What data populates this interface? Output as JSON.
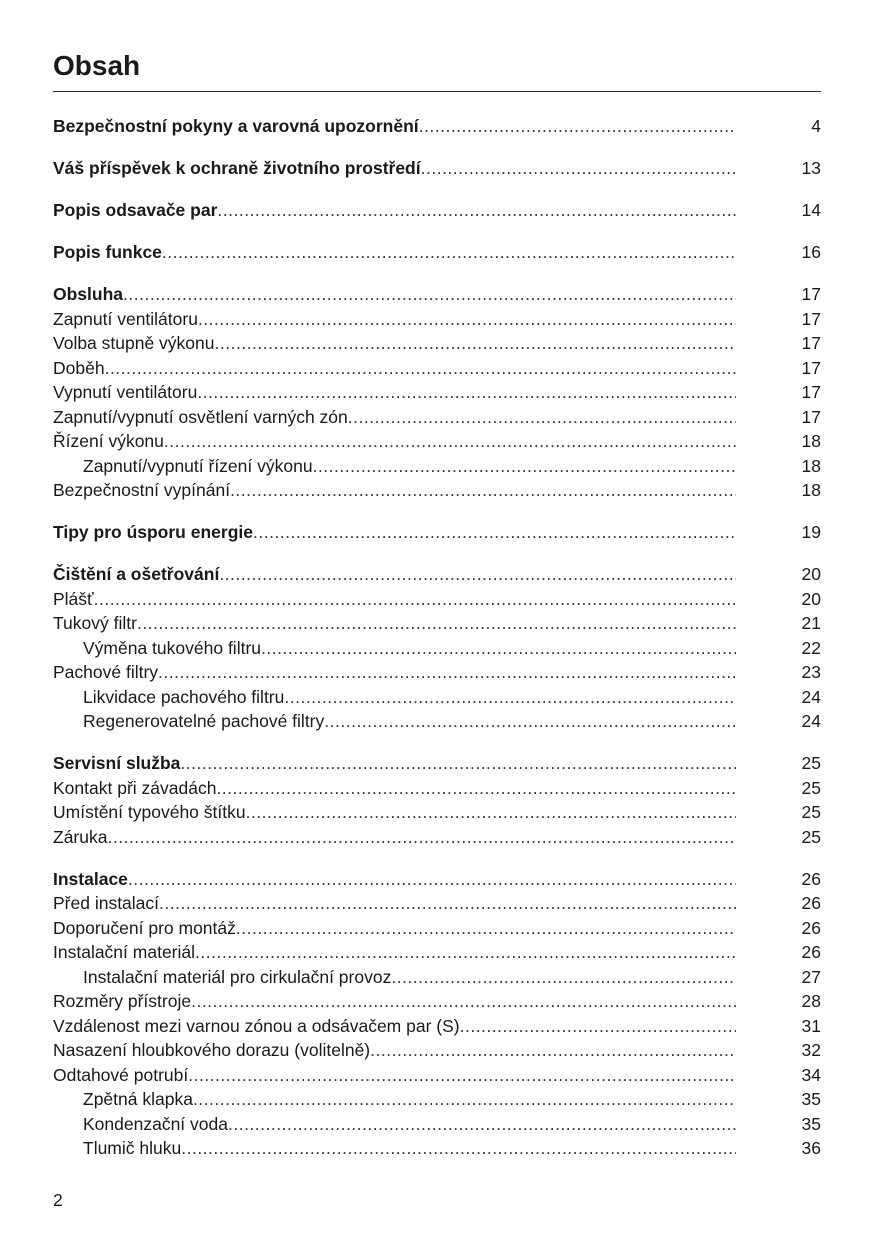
{
  "title": "Obsah",
  "page_number": "2",
  "groups": [
    {
      "entries": [
        {
          "label": "Bezpečnostní pokyny a varovná upozornění",
          "page": "4",
          "bold": true
        }
      ]
    },
    {
      "entries": [
        {
          "label": "Váš příspěvek k ochraně životního prostředí",
          "page": "13",
          "bold": true
        }
      ]
    },
    {
      "entries": [
        {
          "label": "Popis odsavače par",
          "page": "14",
          "bold": true
        }
      ]
    },
    {
      "entries": [
        {
          "label": "Popis funkce",
          "page": "16",
          "bold": true
        }
      ]
    },
    {
      "entries": [
        {
          "label": "Obsluha",
          "page": "17",
          "bold": true
        },
        {
          "label": "Zapnutí ventilátoru",
          "page": "17"
        },
        {
          "label": "Volba stupně výkonu",
          "page": "17"
        },
        {
          "label": "Doběh",
          "page": "17"
        },
        {
          "label": "Vypnutí ventilátoru",
          "page": "17"
        },
        {
          "label": "Zapnutí/vypnutí osvětlení varných zón",
          "page": "17"
        },
        {
          "label": "Řízení výkonu",
          "page": "18"
        },
        {
          "label": "Zapnutí/vypnutí řízení výkonu",
          "page": "18",
          "indent": true
        },
        {
          "label": "Bezpečnostní vypínání",
          "page": "18"
        }
      ]
    },
    {
      "entries": [
        {
          "label": "Tipy pro úsporu energie",
          "page": "19",
          "bold": true
        }
      ]
    },
    {
      "entries": [
        {
          "label": "Čištění a ošetřování",
          "page": "20",
          "bold": true
        },
        {
          "label": "Plášť",
          "page": "20"
        },
        {
          "label": "Tukový filtr",
          "page": "21"
        },
        {
          "label": "Výměna tukového filtru",
          "page": "22",
          "indent": true
        },
        {
          "label": "Pachové filtry",
          "page": "23"
        },
        {
          "label": "Likvidace pachového filtru",
          "page": "24",
          "indent": true
        },
        {
          "label": "Regenerovatelné pachové filtry",
          "page": "24",
          "indent": true
        }
      ]
    },
    {
      "entries": [
        {
          "label": "Servisní služba",
          "page": "25",
          "bold": true
        },
        {
          "label": "Kontakt při závadách",
          "page": "25"
        },
        {
          "label": "Umístění typového štítku",
          "page": "25"
        },
        {
          "label": "Záruka",
          "page": "25"
        }
      ]
    },
    {
      "entries": [
        {
          "label": "Instalace",
          "page": "26",
          "bold": true
        },
        {
          "label": "Před instalací",
          "page": "26"
        },
        {
          "label": "Doporučení pro montáž",
          "page": "26"
        },
        {
          "label": "Instalační materiál",
          "page": "26"
        },
        {
          "label": "Instalační materiál pro cirkulační provoz",
          "page": "27",
          "indent": true
        },
        {
          "label": "Rozměry přístroje",
          "page": "28"
        },
        {
          "label": "Vzdálenost mezi varnou zónou a odsávačem par (S)",
          "page": "31"
        },
        {
          "label": "Nasazení hloubkového dorazu (volitelně)",
          "page": "32"
        },
        {
          "label": "Odtahové potrubí",
          "page": "34"
        },
        {
          "label": "Zpětná klapka",
          "page": "35",
          "indent": true
        },
        {
          "label": "Kondenzační voda",
          "page": "35",
          "indent": true
        },
        {
          "label": "Tlumič hluku",
          "page": "36",
          "indent": true
        }
      ]
    }
  ]
}
